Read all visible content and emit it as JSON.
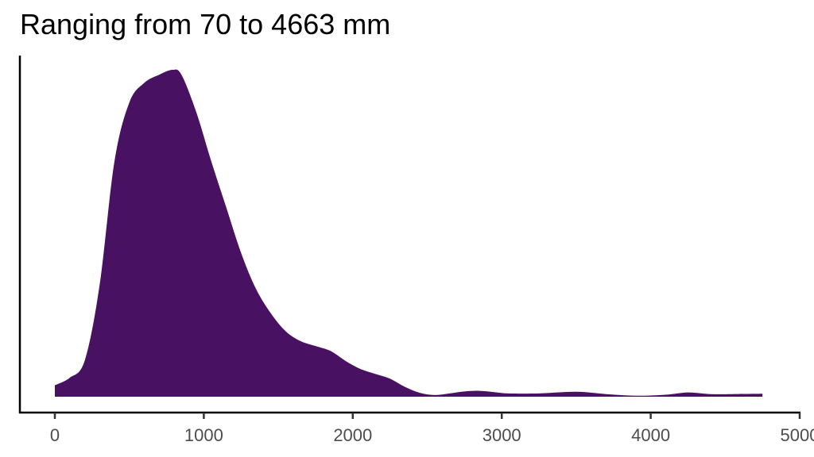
{
  "chart_data": {
    "type": "area",
    "subtype": "density",
    "title": "Ranging from 70 to 4663 mm",
    "xlabel": "",
    "ylabel": "",
    "xlim": [
      0,
      5000
    ],
    "x_ticks": [
      0,
      1000,
      2000,
      3000,
      4000,
      5000
    ],
    "x_tick_labels": [
      "0",
      "1000",
      "2000",
      "3000",
      "4000",
      "5000"
    ],
    "y_ticks": [],
    "grid": false,
    "legend": null,
    "fill_color": "#481162",
    "series": [
      {
        "name": "density",
        "x": [
          0,
          100,
          200,
          300,
          400,
          500,
          600,
          700,
          790,
          850,
          950,
          1050,
          1150,
          1250,
          1350,
          1450,
          1550,
          1650,
          1750,
          1850,
          1950,
          2050,
          2150,
          2250,
          2350,
          2450,
          2550,
          2650,
          2750,
          2850,
          2950,
          3050,
          3250,
          3500,
          3700,
          3900,
          4100,
          4250,
          4400,
          4550,
          4750
        ],
        "relative_density": [
          0.035,
          0.058,
          0.11,
          0.34,
          0.72,
          0.9,
          0.96,
          0.985,
          1.0,
          0.985,
          0.87,
          0.72,
          0.58,
          0.44,
          0.33,
          0.255,
          0.2,
          0.17,
          0.155,
          0.14,
          0.11,
          0.085,
          0.07,
          0.055,
          0.03,
          0.012,
          0.005,
          0.01,
          0.016,
          0.018,
          0.014,
          0.01,
          0.01,
          0.015,
          0.008,
          0.003,
          0.006,
          0.013,
          0.008,
          0.008,
          0.009
        ]
      }
    ],
    "data_range": {
      "min": 70,
      "max": 4663,
      "unit": "mm"
    }
  },
  "colors": {
    "fill": "#481162",
    "axis": "#000000",
    "tick_label": "#4d4d4d",
    "background": "#ffffff"
  }
}
